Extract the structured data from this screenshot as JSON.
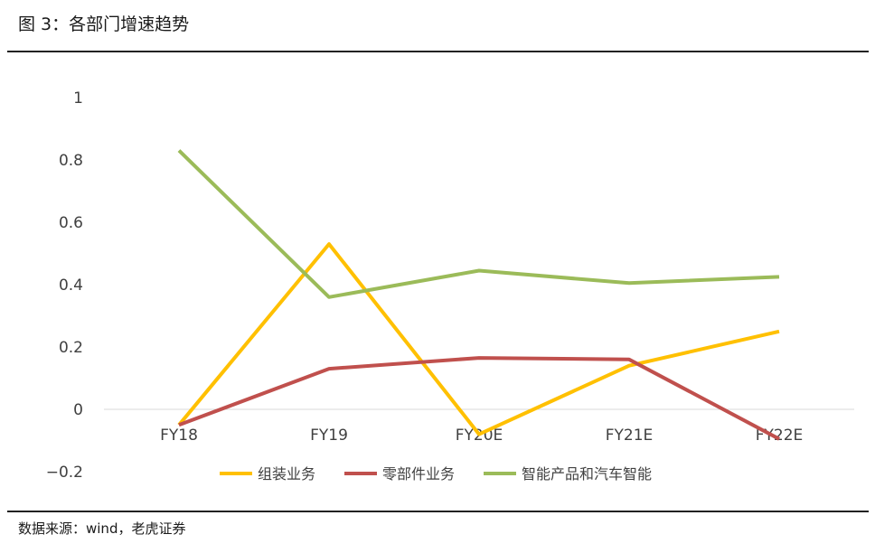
{
  "figure": {
    "title": "图 3：各部门增速趋势",
    "source": "数据来源：wind，老虎证券"
  },
  "chart_data": {
    "type": "line",
    "categories": [
      "FY18",
      "FY19",
      "FY20E",
      "FY21E",
      "FY22E"
    ],
    "series": [
      {
        "name": "组装业务",
        "color": "#FFC000",
        "values": [
          -0.05,
          0.53,
          -0.08,
          0.14,
          0.25
        ]
      },
      {
        "name": "零部件业务",
        "color": "#C0504D",
        "values": [
          -0.05,
          0.13,
          0.165,
          0.16,
          -0.095
        ]
      },
      {
        "name": "智能产品和汽车智能",
        "color": "#9BBB59",
        "values": [
          0.83,
          0.36,
          0.445,
          0.405,
          0.425
        ]
      }
    ],
    "yticks": [
      "1",
      "0.8",
      "0.6",
      "0.4",
      "0.2",
      "0",
      "−0.2"
    ],
    "ylim": [
      -0.2,
      1
    ],
    "grid": false,
    "legend": "bottom"
  }
}
